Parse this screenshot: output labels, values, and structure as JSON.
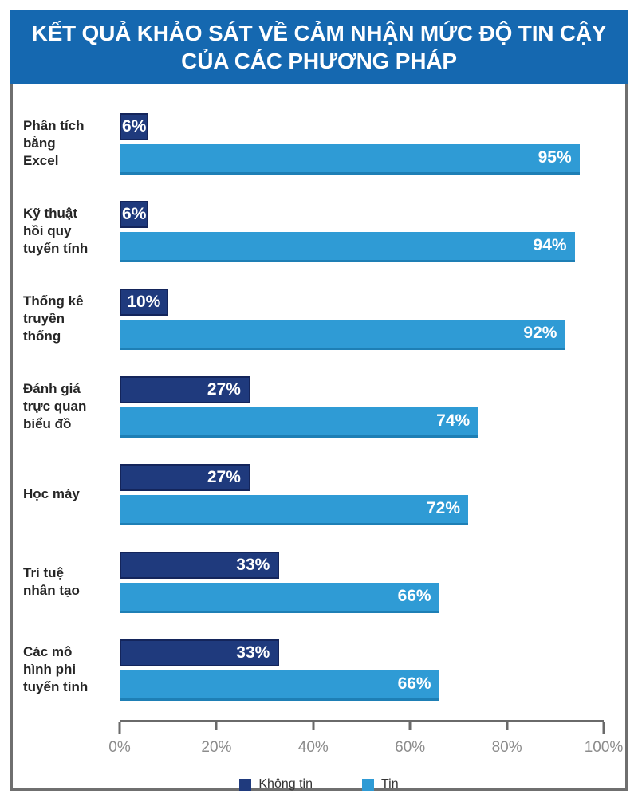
{
  "title": "KẾT QUẢ KHẢO SÁT VỀ CẢM NHẬN MỨC ĐỘ TIN CẬY\nCỦA CÁC PHƯƠNG PHÁP",
  "chart_data": {
    "type": "bar",
    "orientation": "horizontal",
    "title": "KẾT QUẢ KHẢO SÁT VỀ CẢM NHẬN MỨC ĐỘ TIN CẬY CỦA CÁC PHƯƠNG PHÁP",
    "categories": [
      "Phân tích\nbằng\nExcel",
      "Kỹ thuật\nhồi quy\ntuyến tính",
      "Thống kê\ntruyền\nthống",
      "Đánh giá\ntrực quan\nbiểu đồ",
      "Học máy",
      "Trí tuệ\nnhân tạo",
      "Các mô\nhình phi\ntuyến tính"
    ],
    "series": [
      {
        "name": "Không tin",
        "color": "#1F3A7D",
        "values": [
          6,
          6,
          10,
          27,
          27,
          33,
          33
        ]
      },
      {
        "name": "Tin",
        "color": "#2F9BD5",
        "values": [
          95,
          94,
          92,
          74,
          72,
          66,
          66
        ]
      }
    ],
    "value_suffix": "%",
    "x_ticks": [
      "0%",
      "20%",
      "40%",
      "60%",
      "80%",
      "100%"
    ],
    "x_tick_values": [
      0,
      20,
      40,
      60,
      80,
      100
    ],
    "xlim": [
      0,
      100
    ],
    "grid": false,
    "legend_position": "bottom"
  },
  "colors": {
    "title_band": "#1568B0",
    "bar_dark": "#1F3A7D",
    "bar_light": "#2F9BD5",
    "frame_border": "#6F6F6F",
    "axis": "#6A6A6A",
    "tick_label": "#8C8C8C",
    "category_text": "#262626",
    "value_text": "#FFFFFF",
    "legend_text": "#333333"
  }
}
